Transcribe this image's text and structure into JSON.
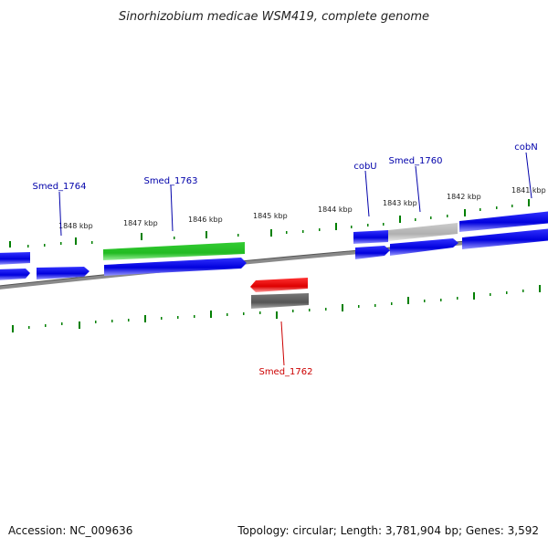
{
  "title": "Sinorhizobium medicae WSM419, complete genome",
  "ticks": [
    "1848 kbp",
    "1847 kbp",
    "1846 kbp",
    "1845 kbp",
    "1844 kbp",
    "1843 kbp",
    "1842 kbp",
    "1841 kbp"
  ],
  "gene_labels": [
    {
      "name": "Smed_1764",
      "color": "#0000aa"
    },
    {
      "name": "Smed_1763",
      "color": "#0000aa"
    },
    {
      "name": "cobU",
      "color": "#0000aa"
    },
    {
      "name": "Smed_1760",
      "color": "#0000aa"
    },
    {
      "name": "cobN",
      "color": "#0000aa"
    },
    {
      "name": "Smed_1762",
      "color": "#cc0000"
    }
  ],
  "colors": {
    "forward_cds": "#0000ee",
    "reverse_cds": "#ee0000",
    "rna_feature": "#22bb22",
    "pseudo_forward": "#b8b8b8",
    "pseudo_reverse": "#606060",
    "backbone": "#707070",
    "tick": "#008000"
  },
  "footer": {
    "accession": "Accession: NC_009636",
    "summary": "Topology: circular; Length: 3,781,904 bp; Genes: 3,592"
  }
}
